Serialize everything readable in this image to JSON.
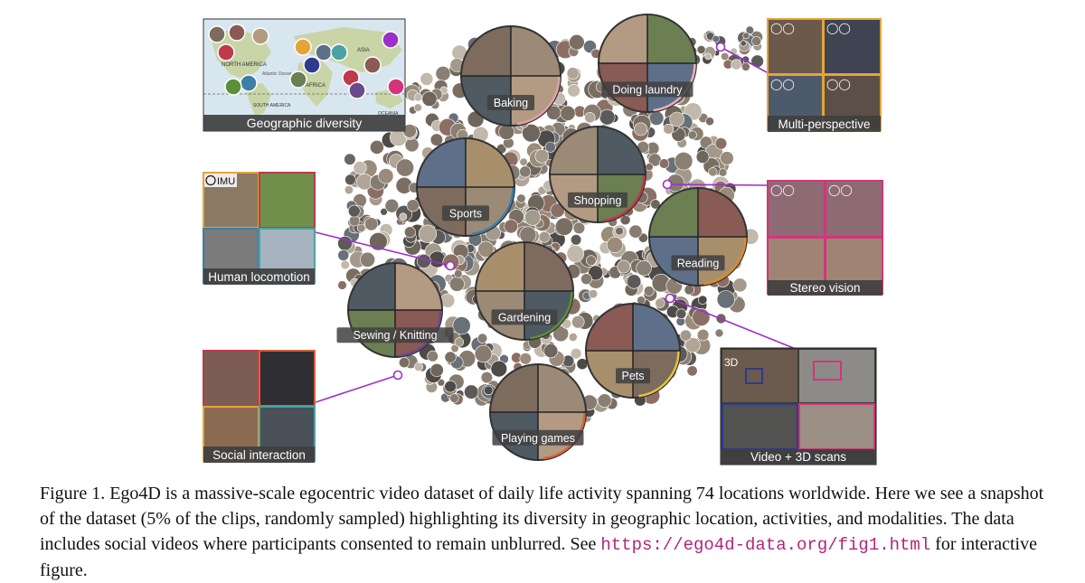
{
  "figure": {
    "panels": {
      "geographic": "Geographic diversity",
      "locomotion": "Human locomotion",
      "social": "Social interaction",
      "multiperspective": "Multi-perspective",
      "stereo": "Stereo vision",
      "video3d": "Video + 3D scans"
    },
    "clusters": [
      {
        "key": "baking",
        "label": "Baking",
        "color": "#e2a1a8"
      },
      {
        "key": "laundry",
        "label": "Doing laundry",
        "color": "#f0b0b6"
      },
      {
        "key": "sports",
        "label": "Sports",
        "color": "#3d7ea6"
      },
      {
        "key": "shopping",
        "label": "Shopping",
        "color": "#c0394b"
      },
      {
        "key": "reading",
        "label": "Reading",
        "color": "#e08b2e"
      },
      {
        "key": "gardening",
        "label": "Gardening",
        "color": "#5b8f3a"
      },
      {
        "key": "sewing",
        "label": "Sewing / Knitting",
        "color": "#6b4a8c"
      },
      {
        "key": "pets",
        "label": "Pets",
        "color": "#e6c23a"
      },
      {
        "key": "games",
        "label": "Playing games",
        "color": "#d8603a"
      }
    ],
    "badges": {
      "imu": "IMU",
      "three_d": "3D"
    },
    "map_labels": {
      "north_america": "NORTH AMERICA",
      "south_america": "SOUTH AMERICA",
      "atlantic": "Atlantic Ocean",
      "africa": "AFRICA",
      "asia": "ASIA",
      "oceania": "OCEANIA"
    },
    "accent_color": "#9b30c8",
    "label_bar_color": "#3f3f3f"
  },
  "caption": {
    "prefix": "Figure 1. Ego4D is a massive-scale egocentric video dataset of daily life activity spanning 74 locations worldwide. Here we see a snapshot of the dataset (5% of the clips, randomly sampled) highlighting its diversity in geographic location, activities, and modalities. The data includes social videos where participants consented to remain unblurred. See",
    "url": "https://ego4d-data.org/fig1.html",
    "suffix": "for interactive figure."
  }
}
